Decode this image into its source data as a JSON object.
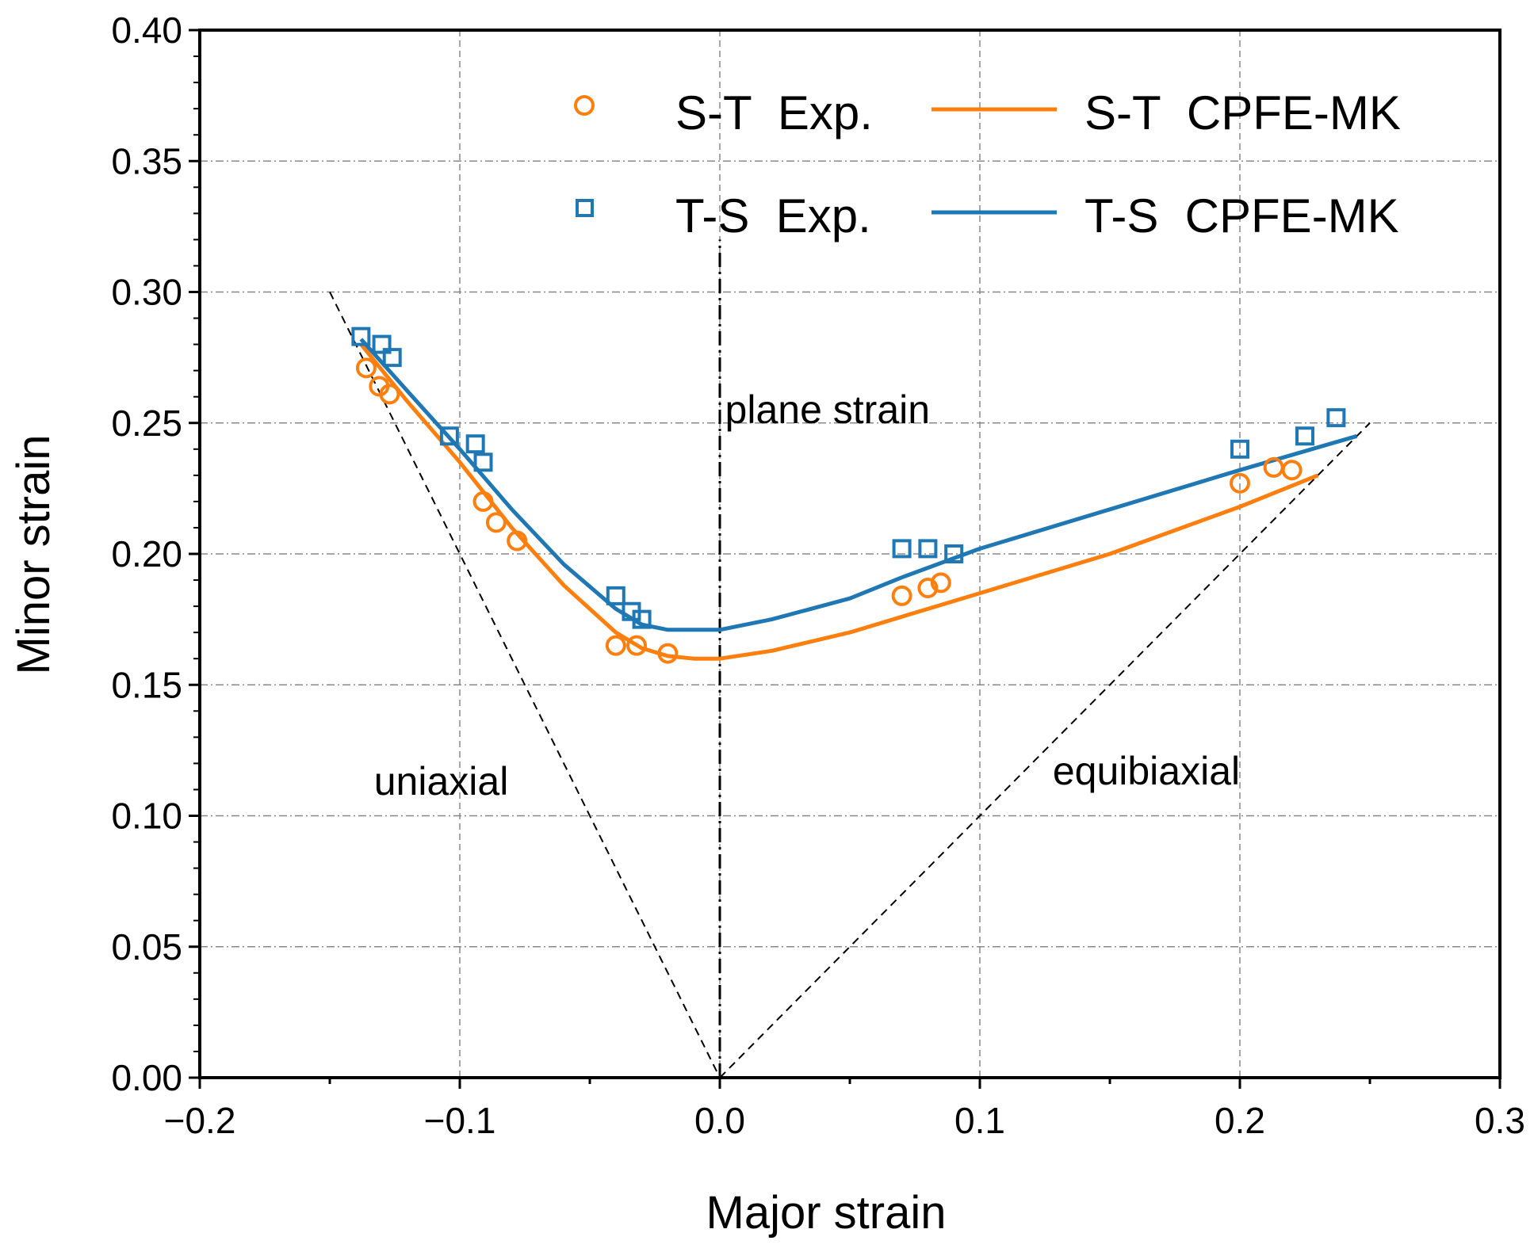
{
  "chart_data": {
    "type": "scatter",
    "title": "",
    "xlabel": "Major strain",
    "ylabel": "Minor strain",
    "xlim": [
      -0.2,
      0.3
    ],
    "ylim": [
      0.0,
      0.4
    ],
    "xticks": [
      -0.2,
      -0.1,
      0.0,
      0.1,
      0.2,
      0.3
    ],
    "xtick_labels": [
      "−0.2",
      "−0.1",
      "0.0",
      "0.1",
      "0.2",
      "0.3"
    ],
    "yticks": [
      0,
      0.05,
      0.1,
      0.15,
      0.2,
      0.25,
      0.3,
      0.35,
      0.4
    ],
    "ytick_labels": [
      "0.00",
      "0.05",
      "0.10",
      "0.15",
      "0.20",
      "0.25",
      "0.30",
      "0.35",
      "0.40"
    ],
    "grid": true,
    "legend_position": "top-right",
    "colors": {
      "orange": "#FF7F0E",
      "blue": "#1F77B4"
    },
    "series": [
      {
        "name": "S-T  Exp.",
        "kind": "scatter",
        "marker": "circle",
        "color": "#FF7F0E",
        "x": [
          -0.136,
          -0.131,
          -0.127,
          -0.091,
          -0.086,
          -0.078,
          -0.04,
          -0.032,
          -0.02,
          0.07,
          0.08,
          0.085,
          0.2,
          0.213,
          0.22
        ],
        "y": [
          0.271,
          0.264,
          0.261,
          0.22,
          0.212,
          0.205,
          0.165,
          0.165,
          0.162,
          0.184,
          0.187,
          0.189,
          0.227,
          0.233,
          0.232
        ]
      },
      {
        "name": "T-S  Exp.",
        "kind": "scatter",
        "marker": "square",
        "color": "#1F77B4",
        "x": [
          -0.138,
          -0.13,
          -0.126,
          -0.104,
          -0.094,
          -0.091,
          -0.04,
          -0.034,
          -0.03,
          0.07,
          0.08,
          0.09,
          0.2,
          0.225,
          0.237
        ],
        "y": [
          0.283,
          0.28,
          0.275,
          0.245,
          0.242,
          0.235,
          0.184,
          0.178,
          0.175,
          0.202,
          0.202,
          0.2,
          0.24,
          0.245,
          0.252
        ]
      },
      {
        "name": "S-T  CPFE-MK",
        "kind": "line",
        "color": "#FF7F0E",
        "x": [
          -0.138,
          -0.12,
          -0.1,
          -0.08,
          -0.06,
          -0.04,
          -0.03,
          -0.02,
          -0.01,
          0.0,
          0.02,
          0.05,
          0.1,
          0.15,
          0.2,
          0.23
        ],
        "y": [
          0.28,
          0.258,
          0.235,
          0.21,
          0.188,
          0.17,
          0.164,
          0.161,
          0.16,
          0.16,
          0.163,
          0.17,
          0.185,
          0.2,
          0.218,
          0.23
        ]
      },
      {
        "name": "T-S  CPFE-MK",
        "kind": "line",
        "color": "#1F77B4",
        "x": [
          -0.138,
          -0.12,
          -0.1,
          -0.08,
          -0.06,
          -0.04,
          -0.03,
          -0.02,
          -0.01,
          0.0,
          0.02,
          0.05,
          0.07,
          0.1,
          0.15,
          0.2,
          0.245
        ],
        "y": [
          0.282,
          0.262,
          0.24,
          0.217,
          0.196,
          0.179,
          0.173,
          0.171,
          0.171,
          0.171,
          0.175,
          0.183,
          0.191,
          0.202,
          0.217,
          0.232,
          0.245
        ]
      }
    ],
    "reference_lines": [
      {
        "name": "uniaxial",
        "x": [
          -0.15,
          0.0
        ],
        "y": [
          0.3,
          0.0
        ]
      },
      {
        "name": "plane strain",
        "x": [
          0.0,
          0.0
        ],
        "y": [
          0.0,
          0.32
        ]
      },
      {
        "name": "equibiaxial",
        "x": [
          0.0,
          0.25
        ],
        "y": [
          0.0,
          0.25
        ]
      }
    ],
    "annotations": [
      {
        "text": "plane strain",
        "x": 0.002,
        "y": 0.25
      },
      {
        "text": "uniaxial",
        "x": -0.133,
        "y": 0.108
      },
      {
        "text": "equibiaxial",
        "x": 0.128,
        "y": 0.112
      }
    ]
  }
}
